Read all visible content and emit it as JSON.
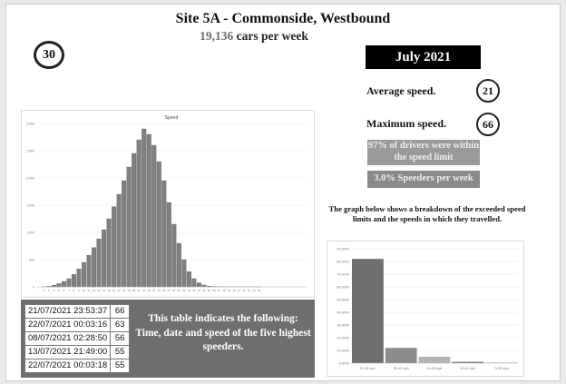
{
  "header": {
    "title": "Site 5A - Commonside, Westbound",
    "cars_count": "19,136",
    "cars_suffix": " cars per week",
    "speed_limit": "30",
    "month": "July 2021"
  },
  "stats": {
    "average_label": "Average speed.",
    "average_value": "21",
    "maximum_label": "Maximum speed.",
    "maximum_value": "66",
    "within_limit_text": "97% of drivers were within the speed limit",
    "speeders_text": "3.0% Speeders per week",
    "graph_caption": "The graph below shows a breakdown of the exceeded speed limits and the speeds in which they travelled."
  },
  "speeders_table": {
    "rows": [
      {
        "datetime": "21/07/2021 23:53:37",
        "speed": "66"
      },
      {
        "datetime": "22/07/2021 00:03:16",
        "speed": "63"
      },
      {
        "datetime": "08/07/2021 02:28:50",
        "speed": "56"
      },
      {
        "datetime": "13/07/2021 21:49:00",
        "speed": "55"
      },
      {
        "datetime": "22/07/2021 00:03:18",
        "speed": "55"
      }
    ],
    "note": "This table indicates the following: Time, date and speed of the five highest speeders."
  },
  "colors": {
    "bar": "#808080",
    "bar_edge": "#555555",
    "panel_gray": "#6e6e6e",
    "black": "#000000"
  },
  "chart_data": [
    {
      "type": "bar",
      "title": "Speed",
      "xlabel": "",
      "ylabel": "",
      "ylim": [
        0,
        3000
      ],
      "y_ticks": [
        "0",
        "500",
        "1,000",
        "1,500",
        "2,000",
        "2,500",
        "3,000"
      ],
      "x": [
        2,
        3,
        4,
        5,
        6,
        7,
        8,
        9,
        10,
        11,
        12,
        13,
        14,
        15,
        16,
        17,
        18,
        19,
        20,
        21,
        22,
        23,
        24,
        25,
        26,
        27,
        28,
        29,
        30,
        31,
        32,
        33,
        34,
        35,
        36,
        37,
        38,
        39,
        40,
        41,
        42,
        43,
        44,
        45
      ],
      "values": [
        5,
        10,
        30,
        60,
        100,
        150,
        230,
        330,
        450,
        580,
        720,
        880,
        1050,
        1250,
        1470,
        1700,
        1950,
        2200,
        2450,
        2700,
        2900,
        2800,
        2600,
        2300,
        1950,
        1550,
        1150,
        800,
        500,
        280,
        150,
        75,
        35,
        15,
        8,
        5,
        3,
        2,
        1,
        1,
        1,
        1,
        1,
        1
      ],
      "grid": true,
      "legend": "none"
    },
    {
      "type": "bar",
      "categories": [
        "31-35 mph",
        "36-40 mph",
        "41-45 mph",
        "51-60 mph",
        "71-80 mph"
      ],
      "values": [
        82,
        12,
        5,
        1,
        0.2
      ],
      "y_ticks": [
        "0.00%",
        "10.00%",
        "20.00%",
        "30.00%",
        "40.00%",
        "50.00%",
        "60.00%",
        "70.00%",
        "80.00%",
        "90.00%"
      ],
      "ylim": [
        0,
        90
      ],
      "grid": true,
      "legend": "none"
    }
  ]
}
